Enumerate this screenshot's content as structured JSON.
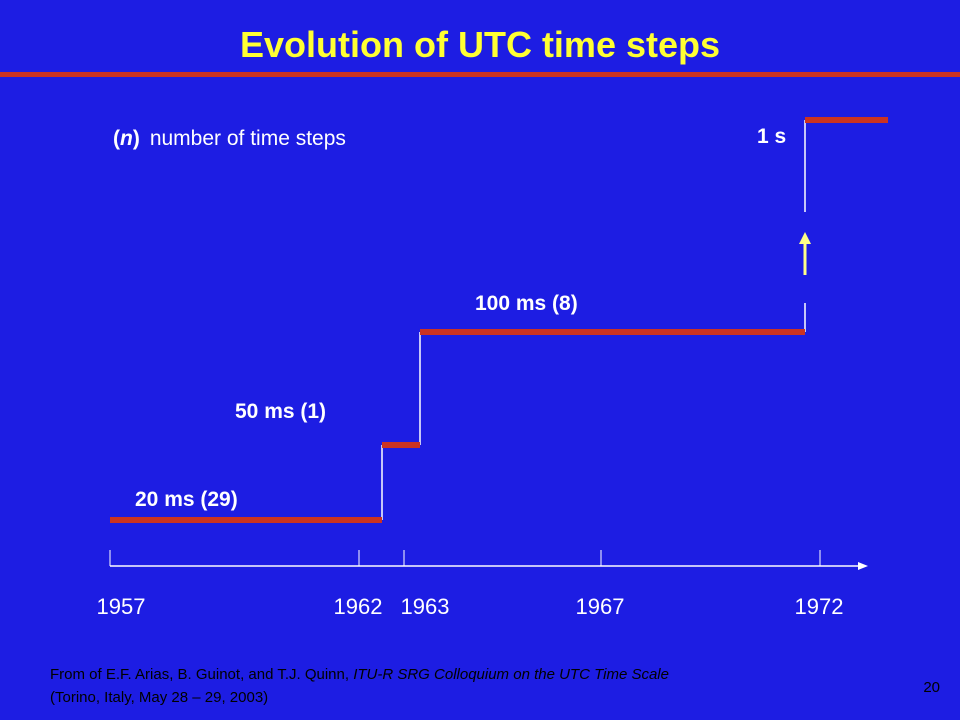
{
  "title": "Evolution of UTC time steps",
  "note": {
    "open": "(",
    "symbol": "n",
    "close": ")",
    "text": "number of time steps"
  },
  "steps": [
    {
      "label": "20 ms  (29)"
    },
    {
      "label": "50 ms  (1)"
    },
    {
      "label": "100 ms  (8)"
    },
    {
      "label": "1 s"
    }
  ],
  "timeline": {
    "years": [
      "1957",
      "1962",
      "1963",
      "1967",
      "1972"
    ]
  },
  "citation": {
    "prefix": "From of E.F. Arias, B. Guinot, and T.J. Quinn, ",
    "source": "ITU-R SRG Colloquium on the UTC Time Scale",
    "place": "(Torino, Italy, May 28 – 29, 2003)"
  },
  "page_number": "20"
}
